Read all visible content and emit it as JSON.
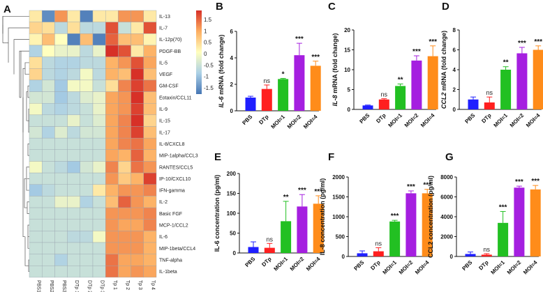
{
  "panel_labels": [
    "A",
    "B",
    "C",
    "D",
    "E",
    "F",
    "G"
  ],
  "heatmap": {
    "type": "heatmap",
    "columns": [
      "PBS1",
      "PBS2",
      "PBS3",
      "DTp 1",
      "DTp 2",
      "DTp 3",
      "Tp 1",
      "Tp 2",
      "Tp 3",
      "Tp 4"
    ],
    "rows": [
      "IL-13",
      "IL-7",
      "IL-12p(70)",
      "PDGF-BB",
      "IL-5",
      "VEGF",
      "GM-CSF",
      "Eotaxin/CCL11",
      "IL-9",
      "IL-15",
      "IL-17",
      "IL-8/CXCL8",
      "MIP-1alpha/CCL3",
      "RANTES/CCL5",
      "IP-10/CXCL10",
      "IFN-gamma",
      "IL-2",
      "Basic FGF",
      "MCP-1/CCL2",
      "IL-6",
      "MIP-1beta/CCL4",
      "TNF-alpha",
      "IL-1beta"
    ],
    "values": [
      [
        0.2,
        -1.3,
        0.9,
        0.2,
        -1.4,
        0.2,
        0.2,
        0.9,
        0.9,
        0.2
      ],
      [
        0.4,
        0.3,
        -0.6,
        0.3,
        -0.6,
        -0.6,
        1.3,
        -0.5,
        0.2,
        1.3
      ],
      [
        0.1,
        0.6,
        0.0,
        -1.4,
        0.6,
        -1.4,
        1.2,
        0.6,
        0.6,
        0.1
      ],
      [
        -0.7,
        0.0,
        -0.2,
        -0.2,
        -0.6,
        -0.2,
        1.5,
        1.3,
        0.2,
        0.7
      ],
      [
        0.3,
        -0.6,
        -0.7,
        -0.7,
        -0.6,
        -0.6,
        0.7,
        0.9,
        1.3,
        0.8
      ],
      [
        0.4,
        -0.6,
        -0.7,
        -0.6,
        -0.1,
        -0.6,
        0.7,
        0.6,
        1.5,
        0.6
      ],
      [
        -0.7,
        -0.4,
        -0.8,
        -0.1,
        -0.1,
        -0.5,
        0.3,
        1.0,
        1.4,
        1.1
      ],
      [
        -0.4,
        -0.4,
        -0.8,
        -0.6,
        -0.3,
        -0.2,
        0.8,
        0.9,
        1.5,
        0.6
      ],
      [
        -0.1,
        -0.6,
        -0.7,
        -0.6,
        -0.5,
        -0.2,
        0.8,
        0.9,
        1.4,
        0.6
      ],
      [
        -0.5,
        -0.5,
        -0.5,
        -0.2,
        -0.5,
        -0.3,
        0.8,
        1.0,
        1.5,
        0.4
      ],
      [
        -0.4,
        -0.7,
        -0.3,
        -0.6,
        -0.4,
        -0.4,
        0.8,
        1.0,
        1.4,
        0.6
      ],
      [
        -0.5,
        -0.5,
        -0.5,
        -0.5,
        -0.5,
        -0.5,
        0.8,
        1.0,
        1.1,
        0.8
      ],
      [
        -0.5,
        -0.5,
        -0.5,
        -0.5,
        -0.5,
        -0.5,
        0.8,
        0.7,
        1.2,
        0.7
      ],
      [
        -0.1,
        -0.5,
        -0.6,
        -0.8,
        -0.4,
        -0.2,
        1.0,
        0.4,
        1.1,
        0.9
      ],
      [
        -0.5,
        -0.5,
        -0.5,
        -0.5,
        -0.5,
        -0.5,
        0.9,
        0.5,
        0.7,
        1.4
      ],
      [
        -0.8,
        -0.6,
        -0.5,
        -0.5,
        -0.5,
        0.2,
        0.7,
        0.9,
        0.9,
        1.0
      ],
      [
        -0.5,
        -0.5,
        -0.2,
        -0.2,
        -0.7,
        -0.5,
        0.6,
        1.2,
        0.9,
        0.7
      ],
      [
        -0.5,
        -0.5,
        -0.5,
        -0.5,
        -0.5,
        -0.5,
        0.9,
        0.9,
        0.9,
        1.0
      ],
      [
        -0.5,
        -0.5,
        -0.5,
        -0.5,
        -0.5,
        -0.5,
        0.9,
        0.8,
        0.8,
        1.0
      ],
      [
        -0.5,
        -0.5,
        -0.5,
        -0.6,
        -0.6,
        -0.1,
        0.9,
        0.9,
        0.9,
        0.7
      ],
      [
        -0.5,
        -0.5,
        -0.5,
        -0.5,
        -0.5,
        -0.5,
        0.9,
        0.9,
        0.9,
        0.7
      ],
      [
        -0.5,
        -0.5,
        -0.7,
        -0.5,
        -0.5,
        -0.5,
        1.1,
        0.8,
        0.8,
        0.7
      ],
      [
        -0.5,
        -0.5,
        -0.5,
        -0.5,
        -0.5,
        -0.5,
        1.1,
        0.8,
        0.9,
        0.8
      ]
    ],
    "color_range": [
      -1.5,
      1.5
    ],
    "legend_ticks": [
      "1.5",
      "1",
      "0.5",
      "0",
      "-0.5",
      "-1",
      "-1.5"
    ],
    "colors": [
      "#4575b4",
      "#abd0e6",
      "#ffffbf",
      "#fdae61",
      "#d73027"
    ]
  },
  "chart_data": [
    {
      "panel": "B",
      "type": "bar",
      "categories": [
        "PBS",
        "DTp",
        "MOI=1",
        "MOI=2",
        "MOI=4"
      ],
      "ylabel_gene": "IL-6",
      "ylabel_rest": " mRNA (fold change)",
      "ylim": [
        0,
        6
      ],
      "yticks": [
        "0",
        "2",
        "4",
        "6"
      ],
      "values": [
        1.0,
        1.65,
        2.4,
        4.2,
        3.4
      ],
      "errors": [
        0.1,
        0.3,
        0.05,
        0.9,
        0.35
      ],
      "significance": [
        "",
        "ns",
        "*",
        "***",
        "***"
      ]
    },
    {
      "panel": "C",
      "type": "bar",
      "categories": [
        "PBS",
        "DTp",
        "MOI=1",
        "MOI=2",
        "MOI=4"
      ],
      "ylabel_gene": "IL-8",
      "ylabel_rest": " mRNA (fold change)",
      "ylim": [
        0,
        20
      ],
      "yticks": [
        "0",
        "5",
        "10",
        "15",
        "20"
      ],
      "values": [
        1.0,
        2.5,
        5.9,
        12.3,
        13.4
      ],
      "errors": [
        0.1,
        0.2,
        0.5,
        1.2,
        2.6
      ],
      "significance": [
        "",
        "ns",
        "**",
        "***",
        "***"
      ]
    },
    {
      "panel": "D",
      "type": "bar",
      "categories": [
        "PBS",
        "DTp",
        "MOI=1",
        "MOI=2",
        "MOI=4"
      ],
      "ylabel_gene": "CCL2",
      "ylabel_rest": " mRNA (fold change)",
      "ylim": [
        0,
        8
      ],
      "yticks": [
        "0",
        "2",
        "4",
        "6",
        "8"
      ],
      "values": [
        1.0,
        0.7,
        4.0,
        5.65,
        6.0
      ],
      "errors": [
        0.25,
        0.55,
        0.3,
        0.6,
        0.4
      ],
      "significance": [
        "",
        "ns",
        "**",
        "***",
        "***"
      ]
    },
    {
      "panel": "E",
      "type": "bar",
      "categories": [
        "PBS",
        "DTp",
        "MOI=1",
        "MOI=2",
        "MOI=4"
      ],
      "ylabel_gene": "",
      "ylabel_rest": "IL-6 concentration (pg/ml)",
      "ylim": [
        0,
        200
      ],
      "yticks": [
        "0",
        "50",
        "100",
        "150",
        "200"
      ],
      "values": [
        15,
        13,
        80,
        117,
        124
      ],
      "errors": [
        13,
        11,
        50,
        30,
        20
      ],
      "significance": [
        "",
        "ns",
        "**",
        "***",
        "***"
      ]
    },
    {
      "panel": "F",
      "type": "bar",
      "categories": [
        "PBS",
        "DTp",
        "MOI=1",
        "MOI=2",
        "MOI=4"
      ],
      "ylabel_gene": "",
      "ylabel_rest": "IL-8 concentration (pg/ml)",
      "ylim": [
        0,
        2000
      ],
      "yticks": [
        "0",
        "500",
        "1000",
        "1500",
        "2000"
      ],
      "values": [
        80,
        130,
        880,
        1590,
        1590
      ],
      "errors": [
        60,
        90,
        30,
        60,
        100
      ],
      "significance": [
        "",
        "ns",
        "***",
        "***",
        "***"
      ]
    },
    {
      "panel": "G",
      "type": "bar",
      "categories": [
        "PBS",
        "DTp",
        "MOI=1",
        "MOI=2",
        "MOI=4"
      ],
      "ylabel_gene": "",
      "ylabel_rest": "CCL2 concentration (pg/ml)",
      "ylim": [
        0,
        8000
      ],
      "yticks": [
        "0",
        "2000",
        "4000",
        "6000",
        "8000"
      ],
      "values": [
        250,
        180,
        3380,
        6930,
        6750
      ],
      "errors": [
        200,
        100,
        1150,
        150,
        400
      ],
      "significance": [
        "",
        "ns",
        "***",
        "***",
        "***"
      ]
    }
  ],
  "bar_colors": [
    "#1f1fff",
    "#ff1f1f",
    "#22c022",
    "#a51fe0",
    "#ff8c1a"
  ]
}
